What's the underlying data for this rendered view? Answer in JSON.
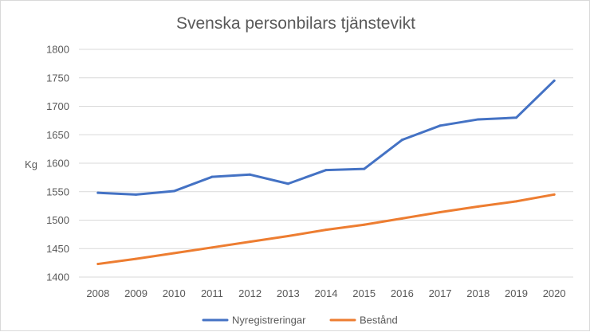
{
  "chart_data": {
    "type": "line",
    "title": "Svenska personbilars tjänstevikt",
    "xlabel": "",
    "ylabel": "Kg",
    "ylim": [
      1400,
      1800
    ],
    "yticks": [
      "1400",
      "1450",
      "1500",
      "1550",
      "1600",
      "1650",
      "1700",
      "1750",
      "1800"
    ],
    "categories": [
      "2008",
      "2009",
      "2010",
      "2011",
      "2012",
      "2013",
      "2014",
      "2015",
      "2016",
      "2017",
      "2018",
      "2019",
      "2020"
    ],
    "grid": true,
    "legend_position": "bottom",
    "series": [
      {
        "name": "Nyregistreringar",
        "color": "#4472c4",
        "values": [
          1548,
          1545,
          1551,
          1576,
          1580,
          1564,
          1588,
          1590,
          1641,
          1666,
          1677,
          1680,
          1745
        ]
      },
      {
        "name": "Bestånd",
        "color": "#ed7d31",
        "values": [
          1423,
          1432,
          1442,
          1452,
          1462,
          1472,
          1483,
          1492,
          1503,
          1514,
          1524,
          1533,
          1545
        ]
      }
    ]
  }
}
